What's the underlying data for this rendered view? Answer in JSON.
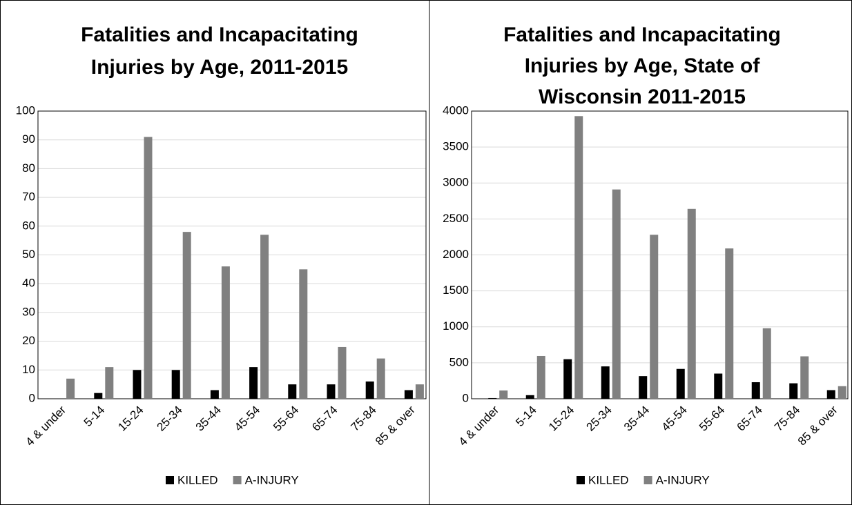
{
  "chart_data": [
    {
      "type": "bar",
      "title": [
        "Fatalities and Incapacitating",
        "Injuries by Age, 2011-2015"
      ],
      "categories": [
        "4 & under",
        "5-14",
        "15-24",
        "25-34",
        "35-44",
        "45-54",
        "55-64",
        "65-74",
        "75-84",
        "85 & over"
      ],
      "series": [
        {
          "name": "KILLED",
          "color": "#000000",
          "values": [
            0,
            2,
            10,
            10,
            3,
            11,
            5,
            5,
            6,
            3
          ]
        },
        {
          "name": "A-INJURY",
          "color": "#808080",
          "values": [
            7,
            11,
            91,
            58,
            46,
            57,
            45,
            18,
            14,
            5
          ]
        }
      ],
      "ylim": [
        0,
        100
      ],
      "yticks": [
        0,
        10,
        20,
        30,
        40,
        50,
        60,
        70,
        80,
        90,
        100
      ],
      "grid": true,
      "legend": "bottom"
    },
    {
      "type": "bar",
      "title": [
        "Fatalities and Incapacitating",
        "Injuries by Age, State of",
        "Wisconsin 2011-2015"
      ],
      "categories": [
        "4 & under",
        "5-14",
        "15-24",
        "25-34",
        "35-44",
        "45-54",
        "55-64",
        "65-74",
        "75-84",
        "85 & over"
      ],
      "series": [
        {
          "name": "KILLED",
          "color": "#000000",
          "values": [
            10,
            50,
            550,
            450,
            315,
            415,
            350,
            230,
            215,
            120
          ]
        },
        {
          "name": "A-INJURY",
          "color": "#808080",
          "values": [
            115,
            595,
            3930,
            2910,
            2280,
            2640,
            2090,
            980,
            590,
            175
          ]
        }
      ],
      "ylim": [
        0,
        4000
      ],
      "yticks": [
        0,
        500,
        1000,
        1500,
        2000,
        2500,
        3000,
        3500,
        4000
      ],
      "grid": true,
      "legend": "bottom"
    }
  ]
}
